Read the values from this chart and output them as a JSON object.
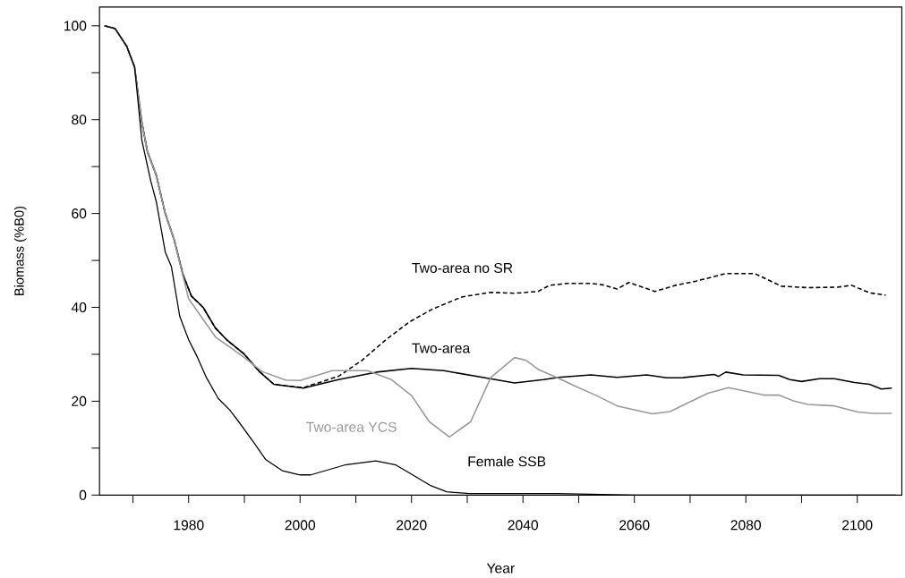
{
  "chart_data": {
    "type": "line",
    "xlabel": "Year",
    "ylabel": "Biomass (%B0)",
    "xlim": [
      1964,
      2108
    ],
    "ylim": [
      0,
      104
    ],
    "xticks": [
      {
        "value": 1970,
        "label": null
      },
      1980,
      {
        "value": 1990,
        "label": null
      },
      2000,
      {
        "value": 2010,
        "label": null
      },
      2020,
      {
        "value": 2030,
        "label": null
      },
      2040,
      {
        "value": 2050,
        "label": null
      },
      2060,
      {
        "value": 2070,
        "label": null
      },
      2080,
      {
        "value": 2090,
        "label": null
      },
      2100
    ],
    "yticks": [
      0,
      {
        "value": 10,
        "label": null
      },
      20,
      {
        "value": 30,
        "label": null
      },
      40,
      {
        "value": 50,
        "label": null
      },
      60,
      {
        "value": 70,
        "label": null
      },
      80,
      {
        "value": 90,
        "label": null
      },
      100
    ],
    "grid": false,
    "legend": false,
    "marker": "none",
    "series": [
      {
        "name": "Two-area no SR",
        "color": "#000000",
        "line_style": "dashed",
        "x": [
          1964.9,
          1966.8,
          1968.9,
          1970.3,
          1971.6,
          1972.6,
          1974.2,
          1975.8,
          1977.4,
          1979,
          1980.5,
          1982.6,
          1984.8,
          1986.9,
          1990,
          1992.7,
          1995.3,
          1996.4,
          2000.6,
          2006.9,
          2011.1,
          2015.4,
          2019.5,
          2023.7,
          2029,
          2034.2,
          2038.5,
          2042.7,
          2044.8,
          2047.9,
          2052.2,
          2054.3,
          2056.9,
          2059,
          2063.7,
          2067.4,
          2071.1,
          2076.4,
          2081.6,
          2086.4,
          2091.1,
          2096.4,
          2099,
          2102.2,
          2105.1
        ],
        "values": [
          100,
          99.4,
          95.6,
          91.2,
          79.4,
          73.2,
          68.1,
          60,
          54.4,
          46.9,
          42.4,
          40,
          35.6,
          33,
          30,
          26.3,
          23.6,
          23.4,
          22.9,
          25.3,
          28.7,
          33.1,
          36.8,
          39.6,
          42.2,
          43.2,
          43,
          43.4,
          44.7,
          45.1,
          45.1,
          44.8,
          43.9,
          45.3,
          43.4,
          44.7,
          45.6,
          47.2,
          47.2,
          44.5,
          44.2,
          44.3,
          44.7,
          43.1,
          42.6
        ]
      },
      {
        "name": "Two-area",
        "color": "#000000",
        "line_style": "solid",
        "x": [
          1964.9,
          1966.8,
          1968.9,
          1970.3,
          1971.6,
          1972.6,
          1974.2,
          1975.8,
          1977.4,
          1979,
          1980.5,
          1982.6,
          1984.8,
          1986.9,
          1990,
          1992.7,
          1995.3,
          2000.6,
          2006.9,
          2013.7,
          2020,
          2025.8,
          2033.2,
          2038.5,
          2043.7,
          2046.4,
          2052.2,
          2056.9,
          2062.2,
          2065.8,
          2068.5,
          2074.3,
          2075.1,
          2076.4,
          2079.5,
          2085.9,
          2087.9,
          2090,
          2093.2,
          2095.9,
          2099.5,
          2102.2,
          2104.3,
          2106.2
        ],
        "values": [
          100,
          99.4,
          95.6,
          91.2,
          79.4,
          73.2,
          68.1,
          60,
          54.4,
          46.9,
          42.4,
          40,
          35.6,
          33,
          30,
          26.3,
          23.6,
          22.8,
          24.6,
          26.2,
          27,
          26.5,
          25,
          23.9,
          24.6,
          25.1,
          25.6,
          25.1,
          25.6,
          25,
          25,
          25.7,
          25.3,
          26.2,
          25.6,
          25.5,
          24.6,
          24.2,
          24.8,
          24.8,
          24,
          23.6,
          22.6,
          22.8
        ]
      },
      {
        "name": "Two-area YCS",
        "color": "#999999",
        "line_style": "solid",
        "x": [
          1964.9,
          1966.8,
          1968.9,
          1970.3,
          1971.6,
          1972.6,
          1974.2,
          1975.8,
          1977.4,
          1980,
          1984.8,
          1990,
          1993.2,
          1997.4,
          2000,
          2005.8,
          2012.1,
          2016.4,
          2020,
          2023.2,
          2026.8,
          2030.6,
          2034.2,
          2038.5,
          2040.6,
          2042.7,
          2046.9,
          2049,
          2053.2,
          2056.9,
          2063.2,
          2066.4,
          2073.2,
          2076.9,
          2083.2,
          2085.9,
          2088.5,
          2091.1,
          2095.9,
          2100.1,
          2102.8,
          2106.2
        ],
        "values": [
          100,
          99.4,
          95.6,
          91.2,
          79.4,
          73.2,
          68.1,
          60,
          54.4,
          41.8,
          33.7,
          29.3,
          26.3,
          24.5,
          24.4,
          26.5,
          26.5,
          24.6,
          21.2,
          15.6,
          12.4,
          15.6,
          25,
          29.3,
          28.7,
          26.8,
          24.6,
          23.4,
          21.2,
          19,
          17.3,
          17.8,
          21.7,
          22.9,
          21.3,
          21.3,
          20.1,
          19.3,
          19,
          17.7,
          17.4,
          17.4
        ]
      },
      {
        "name": "Female SSB",
        "color": "#000000",
        "line_style": "solid",
        "x": [
          1964.9,
          1966.8,
          1968.9,
          1970.3,
          1971.6,
          1973.2,
          1974.2,
          1975.8,
          1976.9,
          1978.4,
          1980,
          1981.6,
          1983.2,
          1985.3,
          1987.4,
          1989,
          1991.7,
          1993.8,
          1996.8,
          2000,
          2001.9,
          2008,
          2013.6,
          2017.2,
          2020.2,
          2023.3,
          2026.3,
          2030.4,
          2046.2,
          2060,
          2107
        ],
        "values": [
          100,
          99.4,
          95.6,
          91.2,
          75.6,
          66.9,
          62.5,
          51.8,
          48.7,
          38.1,
          33.1,
          29.3,
          25,
          20.6,
          18.1,
          15.6,
          11.2,
          7.6,
          5.2,
          4.3,
          4.3,
          6.4,
          7.3,
          6.4,
          4.3,
          2.1,
          0.7,
          0.3,
          0.3,
          0,
          0
        ]
      }
    ]
  }
}
